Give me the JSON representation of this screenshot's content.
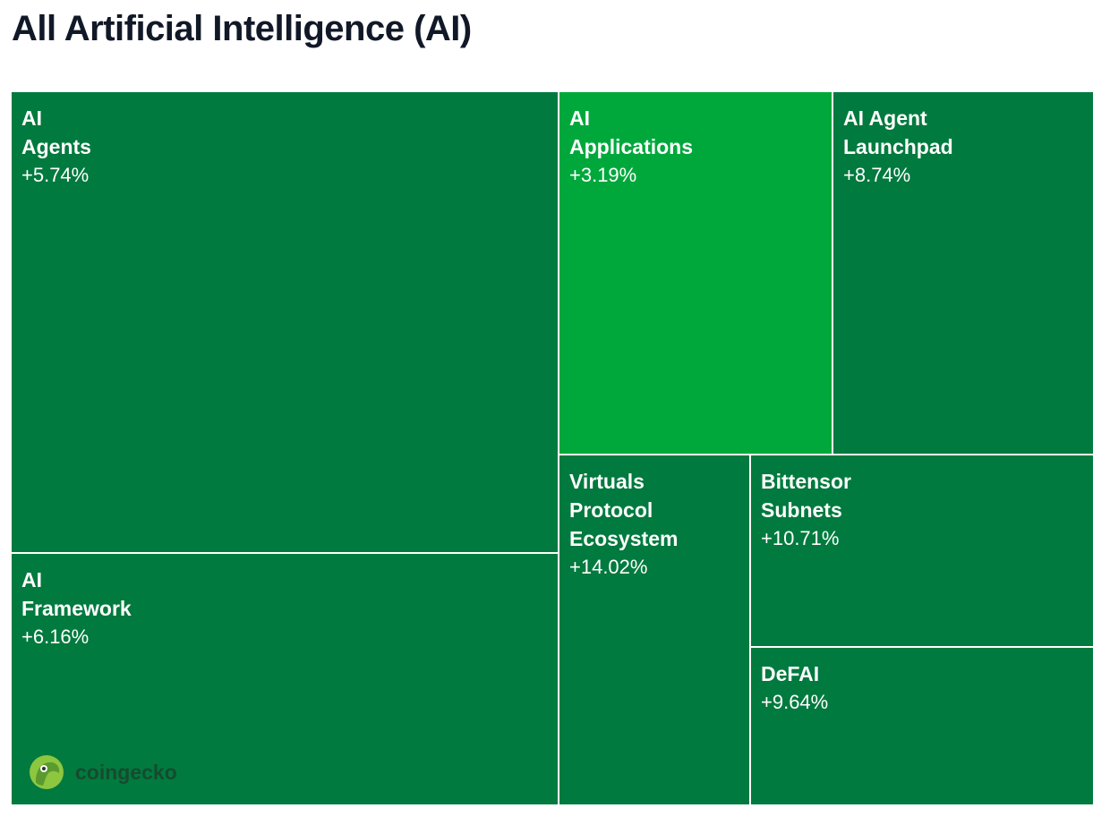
{
  "chart_data": {
    "type": "treemap",
    "title": "All Artificial Intelligence (AI)",
    "tiles": [
      {
        "name": [
          "AI",
          "Agents"
        ],
        "change": "+5.74%",
        "value": 5.74,
        "color": "#007a3e"
      },
      {
        "name": [
          "AI",
          "Framework"
        ],
        "change": "+6.16%",
        "value": 6.16,
        "color": "#007a3e"
      },
      {
        "name": [
          "AI",
          "Applications"
        ],
        "change": "+3.19%",
        "value": 3.19,
        "color": "#00a83c"
      },
      {
        "name": [
          "AI Agent",
          "Launchpad"
        ],
        "change": "+8.74%",
        "value": 8.74,
        "color": "#007a3e"
      },
      {
        "name": [
          "Virtuals",
          "Protocol",
          "Ecosystem"
        ],
        "change": "+14.02%",
        "value": 14.02,
        "color": "#007a3e"
      },
      {
        "name": [
          "Bittensor",
          "Subnets"
        ],
        "change": "+10.71%",
        "value": 10.71,
        "color": "#007a3e"
      },
      {
        "name": [
          "DeFAI"
        ],
        "change": "+9.64%",
        "value": 9.64,
        "color": "#007a3e"
      }
    ]
  },
  "brand": {
    "name": "coingecko",
    "icon": "gecko-logo-icon"
  }
}
